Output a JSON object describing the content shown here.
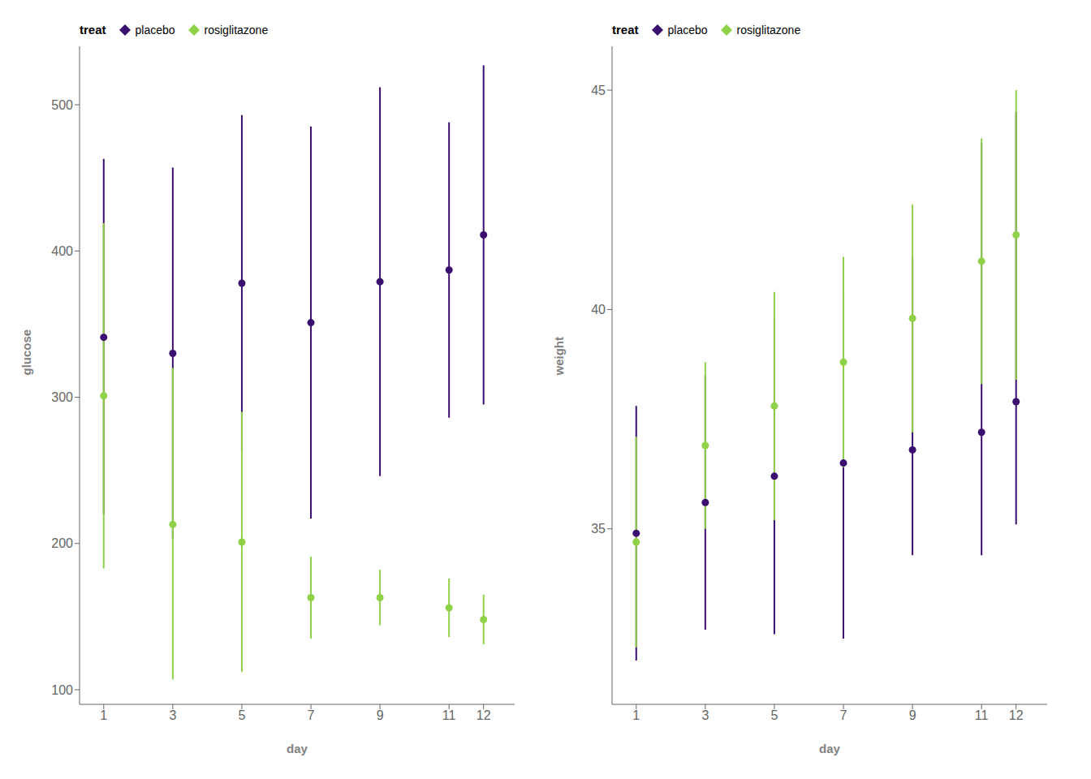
{
  "chart_data": [
    {
      "type": "scatter",
      "xlabel": "day",
      "ylabel": "glucose",
      "legend_title": "treat",
      "legend": "upper left",
      "grid": false,
      "x": [
        1,
        3,
        5,
        7,
        9,
        11,
        12
      ],
      "xlim": [
        0.3,
        12.9
      ],
      "xticks": [
        1,
        3,
        5,
        7,
        9,
        11,
        12
      ],
      "ylim": [
        90,
        540
      ],
      "yticks": [
        100,
        200,
        300,
        400,
        500
      ],
      "series": [
        {
          "name": "placebo",
          "color": "#3B0F6F",
          "values": [
            341,
            330,
            378,
            351,
            379,
            387,
            411
          ],
          "upper": [
            463,
            457,
            493,
            485,
            512,
            488,
            527
          ],
          "lower": [
            220,
            203,
            263,
            217,
            246,
            286,
            295
          ]
        },
        {
          "name": "rosiglitazone",
          "color": "#8FD147",
          "values": [
            301,
            213,
            201,
            163,
            163,
            156,
            148
          ],
          "upper": [
            419,
            320,
            290,
            191,
            182,
            176,
            165
          ],
          "lower": [
            183,
            107,
            112,
            135,
            144,
            136,
            131
          ]
        }
      ]
    },
    {
      "type": "scatter",
      "xlabel": "day",
      "ylabel": "weight",
      "legend_title": "treat",
      "legend": "upper left",
      "grid": false,
      "x": [
        1,
        3,
        5,
        7,
        9,
        11,
        12
      ],
      "xlim": [
        0.3,
        12.9
      ],
      "xticks": [
        1,
        3,
        5,
        7,
        9,
        11,
        12
      ],
      "ylim": [
        31,
        46
      ],
      "yticks": [
        35,
        40,
        45
      ],
      "series": [
        {
          "name": "placebo",
          "color": "#3B0F6F",
          "values": [
            34.9,
            35.6,
            36.2,
            36.5,
            36.8,
            37.2,
            37.9
          ],
          "upper": [
            37.8,
            38.5,
            39.8,
            40.5,
            41.2,
            43.8,
            44.5
          ],
          "lower": [
            32.0,
            32.7,
            32.6,
            32.5,
            34.4,
            34.4,
            35.1
          ]
        },
        {
          "name": "rosiglitazone",
          "color": "#8FD147",
          "values": [
            34.7,
            36.9,
            37.8,
            38.8,
            39.8,
            41.1,
            41.7
          ],
          "upper": [
            37.1,
            38.8,
            40.4,
            41.2,
            42.4,
            43.9,
            45.0
          ],
          "lower": [
            32.3,
            35.0,
            35.2,
            36.4,
            37.2,
            38.3,
            38.4
          ]
        }
      ]
    }
  ]
}
